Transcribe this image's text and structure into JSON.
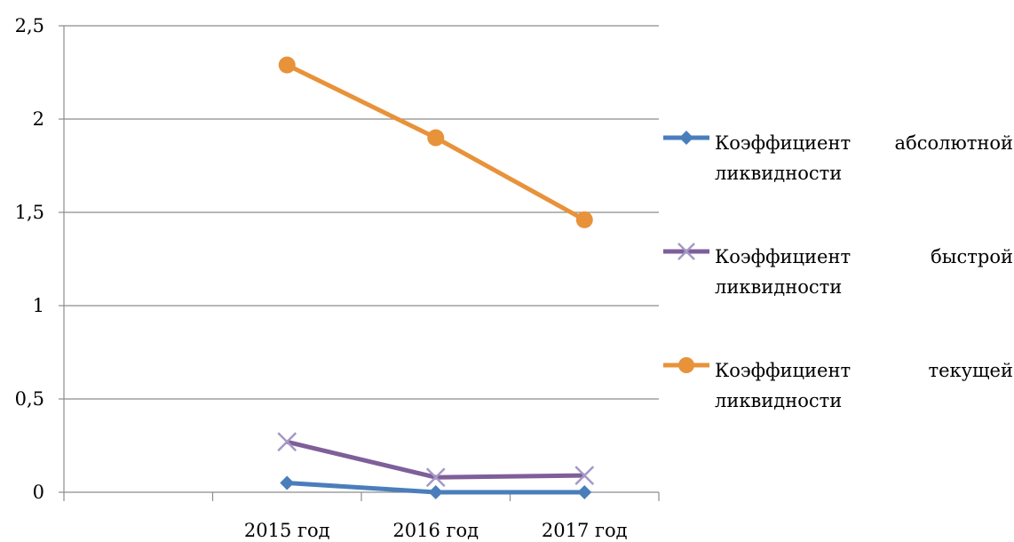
{
  "chart_data": {
    "type": "line",
    "categories": [
      "",
      "2015 год",
      "2016 год",
      "2017 год"
    ],
    "y_ticks": [
      "0",
      "0,5",
      "1",
      "1,5",
      "2",
      "2,5"
    ],
    "ylim": [
      0,
      2.5
    ],
    "y_step": 0.5,
    "grid": true,
    "legend_position": "right",
    "series": [
      {
        "name": "Коэффициент абсолютной ликвидности",
        "color": "#4a7ebb",
        "marker": "diamond",
        "values": [
          null,
          0.05,
          0.0,
          0.0
        ]
      },
      {
        "name": "Коэффициент быстрой ликвидности",
        "color": "#7e5f9a",
        "marker": "x",
        "values": [
          null,
          0.27,
          0.08,
          0.09
        ]
      },
      {
        "name": "Коэффициент текущей ликвидности",
        "color": "#e8923a",
        "marker": "circle",
        "values": [
          null,
          2.29,
          1.9,
          1.46
        ]
      }
    ]
  }
}
